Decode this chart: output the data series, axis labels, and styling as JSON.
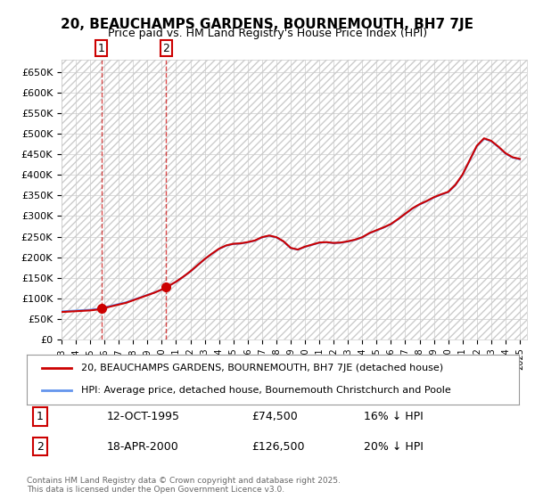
{
  "title": "20, BEAUCHAMPS GARDENS, BOURNEMOUTH, BH7 7JE",
  "subtitle": "Price paid vs. HM Land Registry's House Price Index (HPI)",
  "ylabel_values": [
    "£0",
    "£50K",
    "£100K",
    "£150K",
    "£200K",
    "£250K",
    "£300K",
    "£350K",
    "£400K",
    "£450K",
    "£500K",
    "£550K",
    "£600K",
    "£650K"
  ],
  "ylim": [
    0,
    680000
  ],
  "yticks": [
    0,
    50000,
    100000,
    150000,
    200000,
    250000,
    300000,
    350000,
    400000,
    450000,
    500000,
    550000,
    600000,
    650000
  ],
  "legend_line1": "20, BEAUCHAMPS GARDENS, BOURNEMOUTH, BH7 7JE (detached house)",
  "legend_line2": "HPI: Average price, detached house, Bournemouth Christchurch and Poole",
  "annotation1_label": "1",
  "annotation1_date": "12-OCT-1995",
  "annotation1_price": "£74,500",
  "annotation1_hpi": "16% ↓ HPI",
  "annotation2_label": "2",
  "annotation2_date": "18-APR-2000",
  "annotation2_price": "£126,500",
  "annotation2_hpi": "20% ↓ HPI",
  "footer": "Contains HM Land Registry data © Crown copyright and database right 2025.\nThis data is licensed under the Open Government Licence v3.0.",
  "hpi_color": "#6495ED",
  "price_color": "#CC0000",
  "annotation_color": "#CC0000",
  "bg_hatch_color": "#d0d0d0",
  "grid_color": "#cccccc",
  "hpi_data": {
    "years": [
      1993,
      1994,
      1995,
      1996,
      1997,
      1998,
      1999,
      2000,
      2001,
      2002,
      2003,
      2004,
      2005,
      2006,
      2007,
      2008,
      2009,
      2010,
      2011,
      2012,
      2013,
      2014,
      2015,
      2016,
      2017,
      2018,
      2019,
      2020,
      2021,
      2022,
      2023,
      2024,
      2025
    ],
    "values": [
      68000,
      70000,
      72000,
      78000,
      85000,
      95000,
      108000,
      120000,
      138000,
      160000,
      188000,
      215000,
      225000,
      235000,
      248000,
      235000,
      220000,
      235000,
      238000,
      238000,
      245000,
      262000,
      278000,
      298000,
      320000,
      338000,
      350000,
      368000,
      420000,
      490000,
      478000,
      455000,
      440000
    ]
  },
  "price_data": {
    "dates": [
      1995.78,
      2000.29
    ],
    "values": [
      74500,
      126500
    ]
  },
  "sale1_x": 1995.78,
  "sale1_y": 74500,
  "sale2_x": 2000.29,
  "sale2_y": 126500,
  "xlim": [
    1993,
    2025.5
  ],
  "xtick_years": [
    1993,
    1994,
    1995,
    1996,
    1997,
    1998,
    1999,
    2000,
    2001,
    2002,
    2003,
    2004,
    2005,
    2006,
    2007,
    2008,
    2009,
    2010,
    2011,
    2012,
    2013,
    2014,
    2015,
    2016,
    2017,
    2018,
    2019,
    2020,
    2021,
    2022,
    2023,
    2024,
    2025
  ]
}
